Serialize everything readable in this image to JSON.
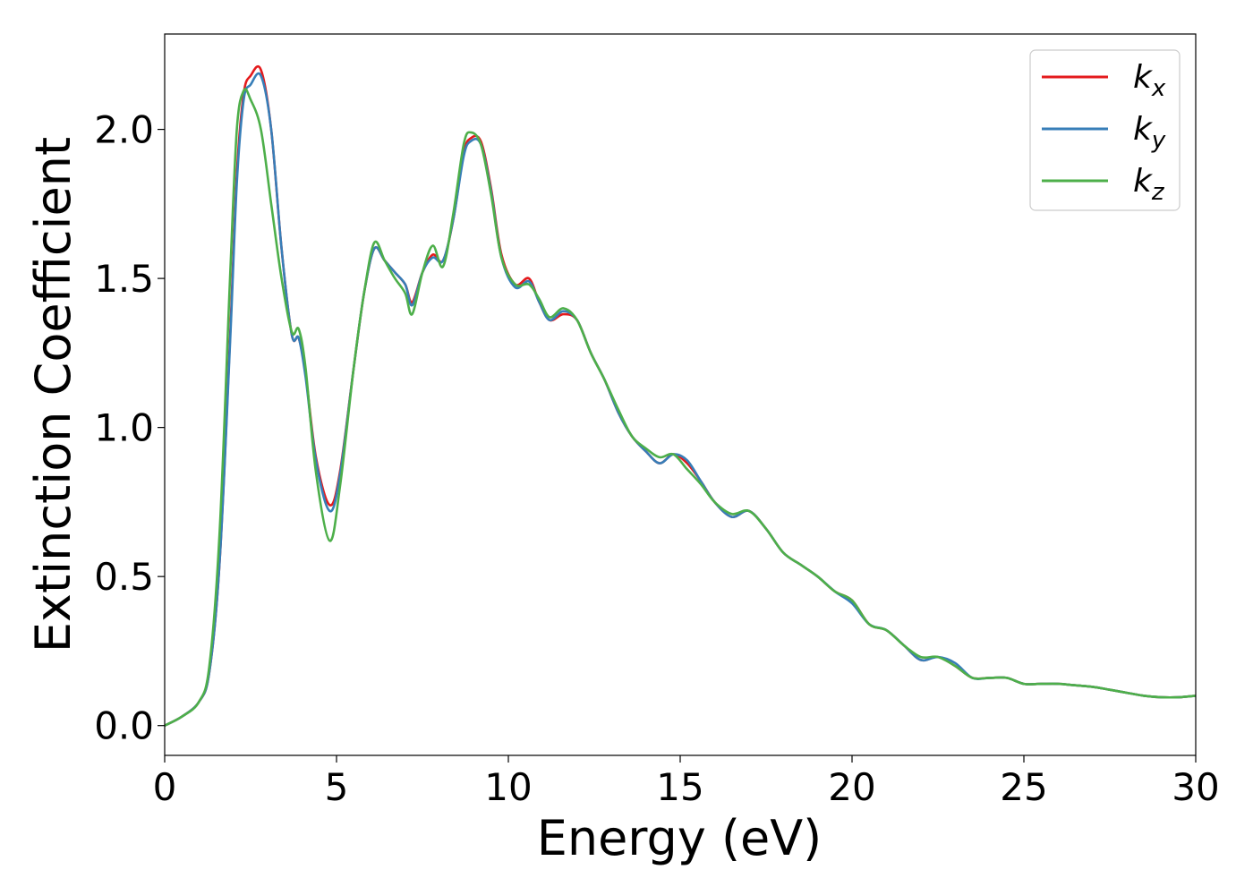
{
  "chart_data": {
    "type": "line",
    "title": "",
    "xlabel": "Energy (eV)",
    "ylabel": "Extinction Coefficient",
    "xlim": [
      0,
      30
    ],
    "ylim": [
      -0.1,
      2.32
    ],
    "xticks": [
      0,
      5,
      10,
      15,
      20,
      25,
      30
    ],
    "xtick_labels": [
      "0",
      "5",
      "10",
      "15",
      "20",
      "25",
      "30"
    ],
    "yticks": [
      0.0,
      0.5,
      1.0,
      1.5,
      2.0
    ],
    "ytick_labels": [
      "0.0",
      "0.5",
      "1.0",
      "1.5",
      "2.0"
    ],
    "grid": false,
    "legend_position": "top-right",
    "series": [
      {
        "name": "k_x",
        "label_base": "k",
        "label_sub": "x",
        "color": "#e41a1c",
        "x": [
          0,
          0.5,
          1,
          1.3,
          1.6,
          1.9,
          2.1,
          2.3,
          2.5,
          2.8,
          3.1,
          3.4,
          3.7,
          3.9,
          4.1,
          4.4,
          4.8,
          5.1,
          5.5,
          5.8,
          6.1,
          6.4,
          6.7,
          7.0,
          7.2,
          7.5,
          7.8,
          8.1,
          8.4,
          8.7,
          8.9,
          9.2,
          9.5,
          9.8,
          10.2,
          10.6,
          10.9,
          11.2,
          11.6,
          12.0,
          12.4,
          12.8,
          13.2,
          13.6,
          14.0,
          14.4,
          14.8,
          15.2,
          15.6,
          16.0,
          16.5,
          17.0,
          17.5,
          18.0,
          18.5,
          19.0,
          19.5,
          20.0,
          20.5,
          21.0,
          21.5,
          22.0,
          22.5,
          23.0,
          23.5,
          24.0,
          24.5,
          25.0,
          25.5,
          26.0,
          26.5,
          27.0,
          27.5,
          28.0,
          28.5,
          29.0,
          29.5,
          30.0
        ],
        "values": [
          0.0,
          0.03,
          0.08,
          0.18,
          0.55,
          1.3,
          1.85,
          2.12,
          2.18,
          2.2,
          2.0,
          1.6,
          1.31,
          1.3,
          1.18,
          0.9,
          0.74,
          0.85,
          1.2,
          1.45,
          1.6,
          1.56,
          1.52,
          1.48,
          1.42,
          1.52,
          1.58,
          1.56,
          1.7,
          1.92,
          1.97,
          1.96,
          1.8,
          1.58,
          1.48,
          1.5,
          1.42,
          1.36,
          1.38,
          1.36,
          1.25,
          1.16,
          1.05,
          0.97,
          0.92,
          0.88,
          0.91,
          0.88,
          0.82,
          0.75,
          0.7,
          0.72,
          0.66,
          0.58,
          0.54,
          0.5,
          0.45,
          0.42,
          0.34,
          0.32,
          0.27,
          0.22,
          0.23,
          0.2,
          0.16,
          0.16,
          0.16,
          0.14,
          0.14,
          0.14,
          0.135,
          0.13,
          0.12,
          0.11,
          0.1,
          0.095,
          0.095,
          0.1
        ]
      },
      {
        "name": "k_y",
        "label_base": "k",
        "label_sub": "y",
        "color": "#377eb8",
        "x": [
          0,
          0.5,
          1,
          1.3,
          1.6,
          1.9,
          2.1,
          2.3,
          2.5,
          2.8,
          3.1,
          3.4,
          3.7,
          3.9,
          4.1,
          4.4,
          4.8,
          5.1,
          5.5,
          5.8,
          6.1,
          6.4,
          6.7,
          7.0,
          7.2,
          7.5,
          7.8,
          8.1,
          8.4,
          8.7,
          8.9,
          9.2,
          9.5,
          9.8,
          10.2,
          10.6,
          10.9,
          11.2,
          11.6,
          12.0,
          12.4,
          12.8,
          13.2,
          13.6,
          14.0,
          14.4,
          14.8,
          15.2,
          15.6,
          16.0,
          16.5,
          17.0,
          17.5,
          18.0,
          18.5,
          19.0,
          19.5,
          20.0,
          20.5,
          21.0,
          21.5,
          22.0,
          22.5,
          23.0,
          23.5,
          24.0,
          24.5,
          25.0,
          25.5,
          26.0,
          26.5,
          27.0,
          27.5,
          28.0,
          28.5,
          29.0,
          29.5,
          30.0
        ],
        "values": [
          0.0,
          0.03,
          0.08,
          0.18,
          0.55,
          1.28,
          1.82,
          2.1,
          2.15,
          2.18,
          2.0,
          1.6,
          1.31,
          1.3,
          1.17,
          0.89,
          0.72,
          0.84,
          1.2,
          1.45,
          1.6,
          1.56,
          1.52,
          1.48,
          1.41,
          1.52,
          1.57,
          1.56,
          1.7,
          1.91,
          1.96,
          1.95,
          1.79,
          1.57,
          1.47,
          1.49,
          1.42,
          1.36,
          1.39,
          1.36,
          1.25,
          1.16,
          1.05,
          0.97,
          0.92,
          0.88,
          0.91,
          0.89,
          0.82,
          0.75,
          0.7,
          0.72,
          0.66,
          0.58,
          0.54,
          0.5,
          0.45,
          0.41,
          0.34,
          0.32,
          0.27,
          0.22,
          0.23,
          0.21,
          0.16,
          0.16,
          0.16,
          0.14,
          0.14,
          0.14,
          0.135,
          0.13,
          0.12,
          0.11,
          0.1,
          0.095,
          0.095,
          0.1
        ]
      },
      {
        "name": "k_z",
        "label_base": "k",
        "label_sub": "z",
        "color": "#4daf4a",
        "x": [
          0,
          0.5,
          1,
          1.3,
          1.6,
          1.9,
          2.1,
          2.3,
          2.5,
          2.8,
          3.1,
          3.4,
          3.7,
          3.9,
          4.1,
          4.4,
          4.8,
          5.1,
          5.5,
          5.8,
          6.1,
          6.4,
          6.7,
          7.0,
          7.2,
          7.5,
          7.8,
          8.1,
          8.4,
          8.7,
          8.9,
          9.2,
          9.5,
          9.8,
          10.2,
          10.6,
          10.9,
          11.2,
          11.6,
          12.0,
          12.4,
          12.8,
          13.2,
          13.6,
          14.0,
          14.4,
          14.8,
          15.2,
          15.6,
          16.0,
          16.5,
          17.0,
          17.5,
          18.0,
          18.5,
          19.0,
          19.5,
          20.0,
          20.5,
          21.0,
          21.5,
          22.0,
          22.5,
          23.0,
          23.5,
          24.0,
          24.5,
          25.0,
          25.5,
          26.0,
          26.5,
          27.0,
          27.5,
          28.0,
          28.5,
          29.0,
          29.5,
          30.0
        ],
        "values": [
          0.0,
          0.03,
          0.08,
          0.2,
          0.65,
          1.5,
          2.0,
          2.13,
          2.1,
          2.0,
          1.75,
          1.5,
          1.32,
          1.33,
          1.2,
          0.85,
          0.62,
          0.8,
          1.2,
          1.45,
          1.62,
          1.56,
          1.5,
          1.45,
          1.38,
          1.52,
          1.61,
          1.54,
          1.72,
          1.95,
          1.99,
          1.95,
          1.78,
          1.57,
          1.48,
          1.48,
          1.43,
          1.37,
          1.4,
          1.36,
          1.25,
          1.16,
          1.06,
          0.97,
          0.93,
          0.9,
          0.91,
          0.86,
          0.81,
          0.75,
          0.71,
          0.72,
          0.66,
          0.58,
          0.54,
          0.5,
          0.45,
          0.42,
          0.34,
          0.32,
          0.27,
          0.23,
          0.23,
          0.2,
          0.16,
          0.16,
          0.16,
          0.14,
          0.14,
          0.14,
          0.135,
          0.13,
          0.12,
          0.11,
          0.1,
          0.095,
          0.095,
          0.1
        ]
      }
    ]
  }
}
